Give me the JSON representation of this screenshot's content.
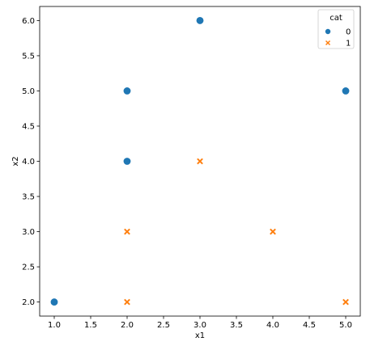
{
  "chart_data": {
    "type": "scatter",
    "xlabel": "x1",
    "ylabel": "x2",
    "xlim": [
      0.8,
      5.2
    ],
    "ylim": [
      1.8,
      6.2
    ],
    "x_ticks": [
      1.0,
      1.5,
      2.0,
      2.5,
      3.0,
      3.5,
      4.0,
      4.5,
      5.0
    ],
    "x_tick_labels": [
      "1.0",
      "1.5",
      "2.0",
      "2.5",
      "3.0",
      "3.5",
      "4.0",
      "4.5",
      "5.0"
    ],
    "y_ticks": [
      2.0,
      2.5,
      3.0,
      3.5,
      4.0,
      4.5,
      5.0,
      5.5,
      6.0
    ],
    "y_tick_labels": [
      "2.0",
      "2.5",
      "3.0",
      "3.5",
      "4.0",
      "4.5",
      "5.0",
      "5.5",
      "6.0"
    ],
    "grid": false,
    "legend": {
      "title": "cat",
      "placement": "top-right",
      "entries": [
        {
          "label": "0",
          "marker": "circle",
          "color": "#1f77b4"
        },
        {
          "label": "1",
          "marker": "x",
          "color": "#ff7f0e"
        }
      ]
    },
    "series": [
      {
        "name": "0",
        "marker": "circle",
        "color": "#1f77b4",
        "points": [
          {
            "x": 1,
            "y": 2
          },
          {
            "x": 2,
            "y": 4
          },
          {
            "x": 2,
            "y": 5
          },
          {
            "x": 3,
            "y": 6
          },
          {
            "x": 5,
            "y": 5
          }
        ]
      },
      {
        "name": "1",
        "marker": "x",
        "color": "#ff7f0e",
        "points": [
          {
            "x": 2,
            "y": 2
          },
          {
            "x": 2,
            "y": 3
          },
          {
            "x": 3,
            "y": 4
          },
          {
            "x": 4,
            "y": 3
          },
          {
            "x": 5,
            "y": 2
          }
        ]
      }
    ]
  }
}
